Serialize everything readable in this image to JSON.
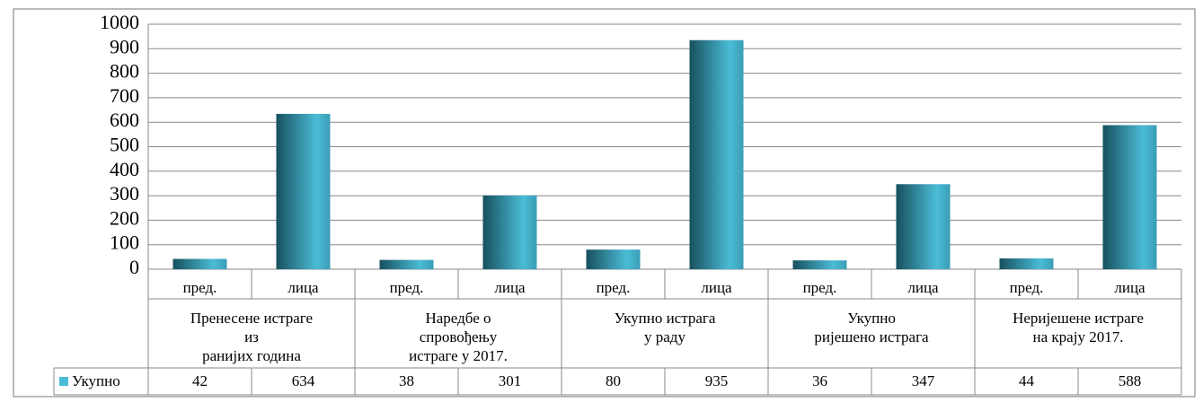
{
  "chart_data": {
    "type": "bar",
    "categories": [
      "пред.",
      "лица",
      "пред.",
      "лица",
      "пред.",
      "лица",
      "пред.",
      "лица",
      "пред.",
      "лица"
    ],
    "groups": [
      [
        "Пренесене истраге",
        "из",
        "ранијих година"
      ],
      [
        "Наредбе о",
        "спровођењу",
        "истраге у 2017."
      ],
      [
        "Укупно истрага",
        "у раду"
      ],
      [
        "Укупно",
        "ријешено истрага"
      ],
      [
        "Неријешене истраге",
        "на крају 2017."
      ]
    ],
    "series": [
      {
        "name": "Укупно",
        "color": "#4bbcd6",
        "values": [
          42,
          634,
          38,
          301,
          80,
          935,
          36,
          347,
          44,
          588
        ]
      }
    ],
    "ylim": [
      0,
      1000
    ],
    "yticks": [
      0,
      100,
      200,
      300,
      400,
      500,
      600,
      700,
      800,
      900,
      1000
    ],
    "grid": true
  }
}
